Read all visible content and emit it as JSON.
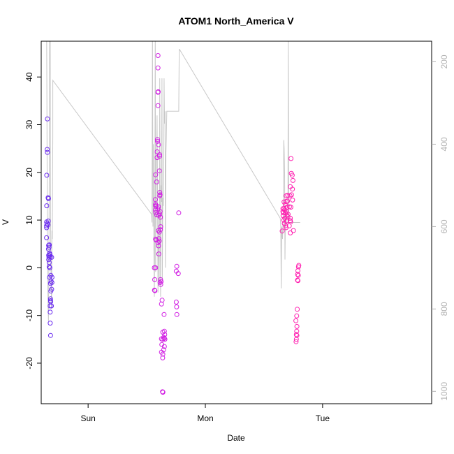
{
  "chart_data": {
    "type": "scatter",
    "title": "ATOM1 North_America V",
    "xlabel": "Date",
    "ylabel": "V",
    "x_ticks": [
      {
        "label": "Sun",
        "day": 1.0
      },
      {
        "label": "Mon",
        "day": 2.0
      },
      {
        "label": "Tue",
        "day": 3.0
      }
    ],
    "xlim_days": [
      0.6,
      3.93
    ],
    "ylim": [
      -28.5,
      47.5
    ],
    "y_ticks": [
      -20,
      -10,
      0,
      10,
      20,
      30,
      40
    ],
    "y2_ticks": [
      200,
      400,
      600,
      800,
      1000
    ],
    "y2lim": [
      1030,
      150
    ],
    "grid": false,
    "legend": "none",
    "colors": {
      "axis": "#000000",
      "secondary_axis": "#b3b3b3",
      "line": "#c8c8c8",
      "points_early": "#6a2bf0",
      "points_mid": "#d11ee3",
      "points_late": "#ff1fb0"
    },
    "series": [
      {
        "kind": "points",
        "axis": "left",
        "color_key": "points_early",
        "points": [
          [
            0.653,
            31.2
          ],
          [
            0.651,
            24.8
          ],
          [
            0.653,
            24.2
          ],
          [
            0.647,
            19.4
          ],
          [
            0.659,
            14.7
          ],
          [
            0.662,
            14.5
          ],
          [
            0.647,
            13.0
          ],
          [
            0.66,
            9.8
          ],
          [
            0.646,
            9.6
          ],
          [
            0.65,
            9.2
          ],
          [
            0.658,
            9.0
          ],
          [
            0.645,
            8.8
          ],
          [
            0.646,
            8.4
          ],
          [
            0.645,
            6.3
          ],
          [
            0.663,
            4.7
          ],
          [
            0.667,
            4.3
          ],
          [
            0.669,
            4.8
          ],
          [
            0.662,
            3.9
          ],
          [
            0.672,
            3.0
          ],
          [
            0.675,
            2.8
          ],
          [
            0.664,
            2.6
          ],
          [
            0.666,
            2.2
          ],
          [
            0.67,
            2.5
          ],
          [
            0.678,
            2.3
          ],
          [
            0.689,
            2.2
          ],
          [
            0.664,
            1.7
          ],
          [
            0.668,
            1.1
          ],
          [
            0.668,
            0.2
          ],
          [
            0.674,
            0.0
          ],
          [
            0.682,
            -1.6
          ],
          [
            0.692,
            -2.0
          ],
          [
            0.671,
            -2.0
          ],
          [
            0.679,
            -3.3
          ],
          [
            0.684,
            -2.8
          ],
          [
            0.691,
            -3.1
          ],
          [
            0.682,
            -4.9
          ],
          [
            0.689,
            -4.5
          ],
          [
            0.679,
            -6.5
          ],
          [
            0.68,
            -6.9
          ],
          [
            0.681,
            -7.1
          ],
          [
            0.676,
            -8.0
          ],
          [
            0.687,
            -8.0
          ],
          [
            0.676,
            -9.3
          ],
          [
            0.677,
            -11.6
          ],
          [
            0.68,
            -14.2
          ]
        ]
      },
      {
        "kind": "points",
        "axis": "left",
        "color_key": "points_mid",
        "points": [
          [
            1.596,
            44.5
          ],
          [
            1.596,
            41.9
          ],
          [
            1.598,
            36.9
          ],
          [
            1.596,
            36.8
          ],
          [
            1.596,
            34.0
          ],
          [
            1.591,
            26.9
          ],
          [
            1.592,
            26.5
          ],
          [
            1.6,
            25.8
          ],
          [
            1.589,
            24.3
          ],
          [
            1.588,
            23.1
          ],
          [
            1.61,
            23.7
          ],
          [
            1.61,
            23.4
          ],
          [
            1.608,
            20.3
          ],
          [
            1.576,
            19.5
          ],
          [
            1.584,
            18.0
          ],
          [
            1.611,
            15.8
          ],
          [
            1.614,
            15.3
          ],
          [
            1.611,
            15.1
          ],
          [
            1.574,
            14.3
          ],
          [
            1.575,
            13.3
          ],
          [
            1.576,
            13.0
          ],
          [
            1.58,
            12.9
          ],
          [
            1.6,
            12.8
          ],
          [
            1.596,
            12.3
          ],
          [
            1.574,
            12.1
          ],
          [
            1.577,
            11.6
          ],
          [
            1.614,
            11.8
          ],
          [
            1.609,
            11.3
          ],
          [
            1.585,
            11.1
          ],
          [
            1.773,
            11.5
          ],
          [
            1.602,
            11.0
          ],
          [
            1.617,
            10.6
          ],
          [
            1.619,
            8.6
          ],
          [
            1.617,
            8.0
          ],
          [
            1.6,
            7.8
          ],
          [
            1.608,
            7.5
          ],
          [
            1.603,
            6.1
          ],
          [
            1.575,
            6.0
          ],
          [
            1.58,
            5.8
          ],
          [
            1.607,
            5.6
          ],
          [
            1.597,
            5.3
          ],
          [
            1.601,
            4.6
          ],
          [
            1.603,
            2.9
          ],
          [
            1.565,
            0.0
          ],
          [
            1.575,
            0.0
          ],
          [
            1.756,
            0.3
          ],
          [
            1.752,
            -0.7
          ],
          [
            1.769,
            -1.2
          ],
          [
            1.568,
            -2.5
          ],
          [
            1.618,
            -2.5
          ],
          [
            1.614,
            -3.1
          ],
          [
            1.622,
            -2.9
          ],
          [
            1.619,
            -3.5
          ],
          [
            1.566,
            -4.7
          ],
          [
            1.57,
            -4.8
          ],
          [
            1.631,
            -6.8
          ],
          [
            1.752,
            -7.2
          ],
          [
            1.626,
            -7.6
          ],
          [
            1.755,
            -8.2
          ],
          [
            1.648,
            -9.8
          ],
          [
            1.757,
            -9.8
          ],
          [
            1.65,
            -13.3
          ],
          [
            1.637,
            -13.5
          ],
          [
            1.653,
            -14.0
          ],
          [
            1.645,
            -14.6
          ],
          [
            1.626,
            -14.9
          ],
          [
            1.637,
            -15.0
          ],
          [
            1.65,
            -14.8
          ],
          [
            1.655,
            -15.0
          ],
          [
            1.629,
            -16.1
          ],
          [
            1.65,
            -16.5
          ],
          [
            1.644,
            -17.2
          ],
          [
            1.626,
            -17.7
          ],
          [
            1.637,
            -18.1
          ],
          [
            1.636,
            -18.9
          ],
          [
            1.635,
            -26.0
          ],
          [
            1.638,
            -26.1
          ]
        ]
      },
      {
        "kind": "points",
        "axis": "left",
        "color_key": "points_late",
        "points": [
          [
            2.73,
            22.9
          ],
          [
            2.733,
            19.8
          ],
          [
            2.741,
            19.4
          ],
          [
            2.747,
            18.3
          ],
          [
            2.725,
            17.0
          ],
          [
            2.743,
            16.5
          ],
          [
            2.735,
            15.3
          ],
          [
            2.689,
            15.1
          ],
          [
            2.703,
            15.2
          ],
          [
            2.722,
            15.1
          ],
          [
            2.744,
            14.2
          ],
          [
            2.671,
            13.8
          ],
          [
            2.689,
            13.9
          ],
          [
            2.701,
            14.0
          ],
          [
            2.681,
            13.3
          ],
          [
            2.696,
            12.7
          ],
          [
            2.717,
            12.8
          ],
          [
            2.729,
            12.7
          ],
          [
            2.662,
            12.4
          ],
          [
            2.672,
            12.4
          ],
          [
            2.678,
            12.1
          ],
          [
            2.69,
            11.9
          ],
          [
            2.661,
            11.8
          ],
          [
            2.666,
            11.5
          ],
          [
            2.683,
            11.5
          ],
          [
            2.697,
            11.0
          ],
          [
            2.706,
            11.2
          ],
          [
            2.663,
            10.9
          ],
          [
            2.678,
            10.4
          ],
          [
            2.704,
            10.7
          ],
          [
            2.724,
            10.4
          ],
          [
            2.669,
            10.0
          ],
          [
            2.693,
            9.8
          ],
          [
            2.724,
            9.9
          ],
          [
            2.727,
            9.6
          ],
          [
            2.673,
            9.3
          ],
          [
            2.685,
            8.8
          ],
          [
            2.716,
            8.8
          ],
          [
            2.688,
            8.4
          ],
          [
            2.655,
            7.7
          ],
          [
            2.751,
            7.8
          ],
          [
            2.725,
            7.3
          ],
          [
            2.797,
            0.5
          ],
          [
            2.794,
            0.2
          ],
          [
            2.789,
            -0.6
          ],
          [
            2.787,
            -1.4
          ],
          [
            2.793,
            -1.6
          ],
          [
            2.786,
            -2.6
          ],
          [
            2.79,
            -2.7
          ],
          [
            2.784,
            -8.7
          ],
          [
            2.779,
            -10.1
          ],
          [
            2.772,
            -11.1
          ],
          [
            2.781,
            -12.3
          ],
          [
            2.779,
            -13.3
          ],
          [
            2.776,
            -14.0
          ],
          [
            2.781,
            -14.2
          ],
          [
            2.776,
            -15.0
          ],
          [
            2.774,
            -15.5
          ]
        ]
      }
    ],
    "line_series": {
      "kind": "line",
      "axis": "right",
      "color_key": "line",
      "points": [
        [
          0.645,
          60
        ],
        [
          0.648,
          260
        ],
        [
          0.651,
          530
        ],
        [
          0.655,
          720
        ],
        [
          0.659,
          800
        ],
        [
          0.662,
          830
        ],
        [
          0.666,
          650
        ],
        [
          0.669,
          430
        ],
        [
          0.672,
          100
        ],
        [
          0.676,
          60
        ],
        [
          0.68,
          580
        ],
        [
          0.684,
          720
        ],
        [
          0.688,
          800
        ],
        [
          0.692,
          610
        ],
        [
          0.695,
          630
        ],
        [
          0.699,
          380
        ],
        [
          0.699,
          245
        ],
        [
          1.541,
          570
        ],
        [
          1.545,
          590
        ],
        [
          1.549,
          100
        ],
        [
          1.553,
          600
        ],
        [
          1.557,
          400
        ],
        [
          1.561,
          650
        ],
        [
          1.565,
          770
        ],
        [
          1.569,
          540
        ],
        [
          1.573,
          120
        ],
        [
          1.576,
          710
        ],
        [
          1.58,
          580
        ],
        [
          1.584,
          450
        ],
        [
          1.588,
          330
        ],
        [
          1.592,
          510
        ],
        [
          1.596,
          760
        ],
        [
          1.6,
          640
        ],
        [
          1.604,
          560
        ],
        [
          1.607,
          740
        ],
        [
          1.611,
          240
        ],
        [
          1.615,
          610
        ],
        [
          1.618,
          770
        ],
        [
          1.622,
          500
        ],
        [
          1.626,
          540
        ],
        [
          1.63,
          240
        ],
        [
          1.633,
          730
        ],
        [
          1.637,
          530
        ],
        [
          1.641,
          550
        ],
        [
          1.645,
          490
        ],
        [
          1.648,
          240
        ],
        [
          1.652,
          350
        ],
        [
          1.656,
          320
        ],
        [
          1.66,
          700
        ],
        [
          1.664,
          420
        ],
        [
          1.667,
          390
        ],
        [
          1.671,
          320
        ],
        [
          1.675,
          320
        ],
        [
          1.679,
          320
        ],
        [
          1.682,
          320
        ],
        [
          1.686,
          320
        ],
        [
          1.69,
          320
        ],
        [
          1.694,
          320
        ],
        [
          1.698,
          320
        ],
        [
          1.701,
          320
        ],
        [
          1.705,
          320
        ],
        [
          1.709,
          320
        ],
        [
          1.713,
          320
        ],
        [
          1.717,
          320
        ],
        [
          1.72,
          320
        ],
        [
          1.724,
          320
        ],
        [
          1.728,
          320
        ],
        [
          1.732,
          320
        ],
        [
          1.736,
          320
        ],
        [
          1.739,
          320
        ],
        [
          1.743,
          320
        ],
        [
          1.747,
          320
        ],
        [
          1.751,
          320
        ],
        [
          1.754,
          320
        ],
        [
          1.758,
          320
        ],
        [
          1.762,
          320
        ],
        [
          1.766,
          320
        ],
        [
          1.769,
          320
        ],
        [
          1.773,
          320
        ],
        [
          1.777,
          170
        ],
        [
          1.78,
          170
        ],
        [
          2.639,
          580
        ],
        [
          2.643,
          600
        ],
        [
          2.647,
          750
        ],
        [
          2.651,
          600
        ],
        [
          2.655,
          620
        ],
        [
          2.658,
          630
        ],
        [
          2.662,
          590
        ],
        [
          2.665,
          590
        ],
        [
          2.669,
          390
        ],
        [
          2.672,
          410
        ],
        [
          2.676,
          470
        ],
        [
          2.679,
          680
        ],
        [
          2.683,
          560
        ],
        [
          2.686,
          560
        ],
        [
          2.69,
          590
        ],
        [
          2.693,
          590
        ],
        [
          2.697,
          590
        ],
        [
          2.7,
          590
        ],
        [
          2.704,
          590
        ],
        [
          2.707,
          150
        ],
        [
          2.711,
          590
        ],
        [
          2.714,
          590
        ],
        [
          2.718,
          590
        ],
        [
          2.721,
          590
        ],
        [
          2.725,
          590
        ],
        [
          2.728,
          590
        ],
        [
          2.732,
          590
        ],
        [
          2.735,
          590
        ],
        [
          2.739,
          590
        ],
        [
          2.742,
          590
        ],
        [
          2.745,
          590
        ],
        [
          2.749,
          590
        ],
        [
          2.752,
          590
        ],
        [
          2.756,
          590
        ],
        [
          2.759,
          590
        ],
        [
          2.763,
          590
        ],
        [
          2.766,
          590
        ],
        [
          2.77,
          590
        ],
        [
          2.773,
          590
        ],
        [
          2.777,
          590
        ],
        [
          2.78,
          590
        ],
        [
          2.784,
          590
        ],
        [
          2.787,
          590
        ],
        [
          2.79,
          590
        ],
        [
          2.794,
          590
        ],
        [
          2.797,
          590
        ],
        [
          2.801,
          590
        ],
        [
          2.804,
          590
        ],
        [
          2.808,
          590
        ]
      ]
    }
  }
}
